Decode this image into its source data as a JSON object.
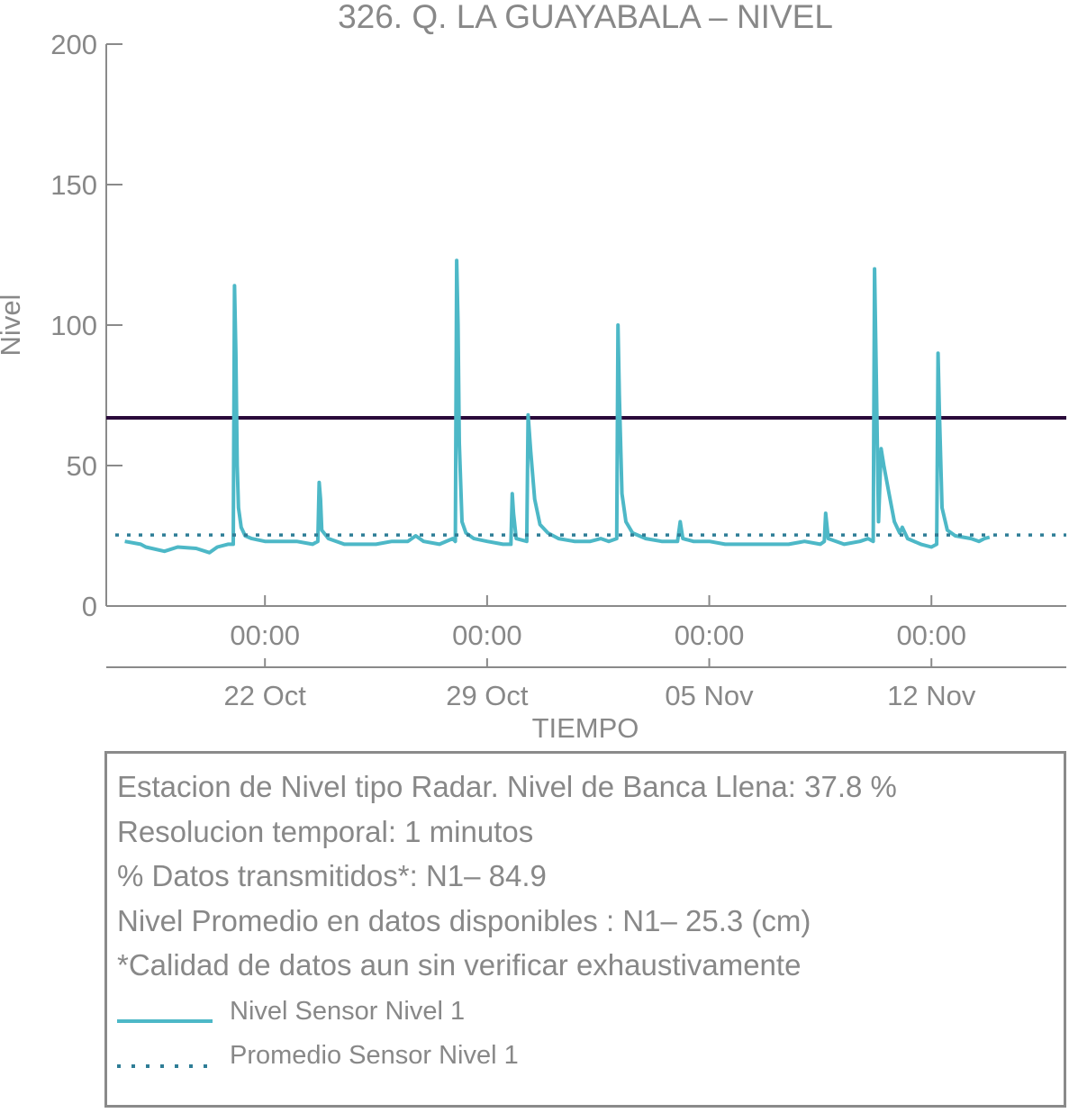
{
  "chart_data": {
    "type": "line",
    "title": "326. Q. LA GUAYABALA – NIVEL",
    "xlabel": "TIEMPO",
    "ylabel": "Nivel",
    "ylim": [
      0,
      200
    ],
    "yticks": [
      "0",
      "50",
      "100",
      "150",
      "200"
    ],
    "xlim": [
      "2023-10-17 00:00",
      "2023-11-16 06:00"
    ],
    "xticks_time": [
      "00:00",
      "00:00",
      "00:00",
      "00:00"
    ],
    "xticks_date": [
      "22 Oct",
      "29 Oct",
      "05 Nov",
      "12 Nov"
    ],
    "xticks_at": [
      "2023-10-22",
      "2023-10-29",
      "2023-11-05",
      "2023-11-12"
    ],
    "threshold": {
      "value": 67,
      "color": "#2a0a3a"
    },
    "grid": false,
    "series": [
      {
        "name": "Nivel Sensor Nivel 1",
        "color": "#4db8c7",
        "style": "solid",
        "points": [
          [
            "2023-10-17 14:00",
            23
          ],
          [
            "2023-10-18 02:00",
            22
          ],
          [
            "2023-10-18 06:00",
            21
          ],
          [
            "2023-10-18 20:00",
            19.5
          ],
          [
            "2023-10-19 06:00",
            21
          ],
          [
            "2023-10-19 20:00",
            20.5
          ],
          [
            "2023-10-20 06:00",
            19
          ],
          [
            "2023-10-20 12:00",
            21
          ],
          [
            "2023-10-20 20:00",
            22
          ],
          [
            "2023-10-21 00:00",
            22
          ],
          [
            "2023-10-21 01:00",
            114
          ],
          [
            "2023-10-21 02:00",
            90
          ],
          [
            "2023-10-21 03:00",
            50
          ],
          [
            "2023-10-21 04:00",
            35
          ],
          [
            "2023-10-21 06:00",
            28
          ],
          [
            "2023-10-21 09:00",
            25
          ],
          [
            "2023-10-21 14:00",
            24
          ],
          [
            "2023-10-22 00:00",
            23
          ],
          [
            "2023-10-22 12:00",
            23
          ],
          [
            "2023-10-23 00:00",
            23
          ],
          [
            "2023-10-23 12:00",
            22
          ],
          [
            "2023-10-23 16:00",
            23
          ],
          [
            "2023-10-23 17:00",
            44
          ],
          [
            "2023-10-23 18:00",
            38
          ],
          [
            "2023-10-23 19:00",
            27
          ],
          [
            "2023-10-24 00:00",
            24
          ],
          [
            "2023-10-24 12:00",
            22
          ],
          [
            "2023-10-25 00:00",
            22
          ],
          [
            "2023-10-25 12:00",
            22
          ],
          [
            "2023-10-26 00:00",
            23
          ],
          [
            "2023-10-26 12:00",
            23
          ],
          [
            "2023-10-26 18:00",
            25
          ],
          [
            "2023-10-27 00:00",
            23
          ],
          [
            "2023-10-27 12:00",
            22
          ],
          [
            "2023-10-27 22:00",
            24
          ],
          [
            "2023-10-28 00:00",
            23
          ],
          [
            "2023-10-28 01:00",
            123
          ],
          [
            "2023-10-28 02:00",
            100
          ],
          [
            "2023-10-28 03:00",
            58
          ],
          [
            "2023-10-28 05:00",
            30
          ],
          [
            "2023-10-28 08:00",
            26
          ],
          [
            "2023-10-28 14:00",
            24
          ],
          [
            "2023-10-29 00:00",
            23
          ],
          [
            "2023-10-29 12:00",
            22
          ],
          [
            "2023-10-29 18:00",
            22
          ],
          [
            "2023-10-29 19:00",
            40
          ],
          [
            "2023-10-29 20:00",
            33
          ],
          [
            "2023-10-29 22:00",
            24
          ],
          [
            "2023-10-30 06:00",
            23
          ],
          [
            "2023-10-30 07:00",
            68
          ],
          [
            "2023-10-30 09:00",
            55
          ],
          [
            "2023-10-30 12:00",
            38
          ],
          [
            "2023-10-30 16:00",
            29
          ],
          [
            "2023-10-30 22:00",
            26
          ],
          [
            "2023-10-31 06:00",
            24
          ],
          [
            "2023-10-31 18:00",
            23
          ],
          [
            "2023-11-01 06:00",
            23
          ],
          [
            "2023-11-01 14:00",
            24
          ],
          [
            "2023-11-01 20:00",
            23
          ],
          [
            "2023-11-02 02:00",
            24
          ],
          [
            "2023-11-02 03:00",
            100
          ],
          [
            "2023-11-02 04:00",
            75
          ],
          [
            "2023-11-02 06:00",
            40
          ],
          [
            "2023-11-02 09:00",
            30
          ],
          [
            "2023-11-02 14:00",
            26
          ],
          [
            "2023-11-03 00:00",
            24
          ],
          [
            "2023-11-03 12:00",
            23
          ],
          [
            "2023-11-04 00:00",
            23
          ],
          [
            "2023-11-04 02:00",
            30
          ],
          [
            "2023-11-04 04:00",
            24
          ],
          [
            "2023-11-04 12:00",
            23
          ],
          [
            "2023-11-05 00:00",
            23
          ],
          [
            "2023-11-05 12:00",
            22
          ],
          [
            "2023-11-06 00:00",
            22
          ],
          [
            "2023-11-06 12:00",
            22
          ],
          [
            "2023-11-07 00:00",
            22
          ],
          [
            "2023-11-07 12:00",
            22
          ],
          [
            "2023-11-08 00:00",
            23
          ],
          [
            "2023-11-08 12:00",
            22
          ],
          [
            "2023-11-08 15:00",
            23
          ],
          [
            "2023-11-08 16:00",
            33
          ],
          [
            "2023-11-08 18:00",
            24
          ],
          [
            "2023-11-09 06:00",
            22
          ],
          [
            "2023-11-09 18:00",
            23
          ],
          [
            "2023-11-10 00:00",
            24
          ],
          [
            "2023-11-10 04:00",
            23
          ],
          [
            "2023-11-10 05:00",
            120
          ],
          [
            "2023-11-10 06:00",
            90
          ],
          [
            "2023-11-10 08:00",
            30
          ],
          [
            "2023-11-10 10:00",
            56
          ],
          [
            "2023-11-10 12:00",
            50
          ],
          [
            "2023-11-10 16:00",
            40
          ],
          [
            "2023-11-10 20:00",
            30
          ],
          [
            "2023-11-11 00:00",
            26
          ],
          [
            "2023-11-11 02:00",
            28
          ],
          [
            "2023-11-11 06:00",
            24
          ],
          [
            "2023-11-11 16:00",
            22
          ],
          [
            "2023-11-12 00:00",
            21
          ],
          [
            "2023-11-12 04:00",
            22
          ],
          [
            "2023-11-12 05:00",
            90
          ],
          [
            "2023-11-12 06:00",
            70
          ],
          [
            "2023-11-12 08:00",
            35
          ],
          [
            "2023-11-12 12:00",
            27
          ],
          [
            "2023-11-12 18:00",
            25
          ],
          [
            "2023-11-13 06:00",
            24
          ],
          [
            "2023-11-13 12:00",
            23
          ],
          [
            "2023-11-13 16:00",
            24
          ],
          [
            "2023-11-13 20:00",
            24.5
          ]
        ]
      },
      {
        "name": "Promedio Sensor Nivel 1",
        "color": "#2e7d96",
        "style": "dotted",
        "value": 25.3
      }
    ]
  },
  "info": {
    "line1": "Estacion de Nivel tipo Radar. Nivel de Banca Llena: 37.8 %",
    "line2": "Resolucion temporal: 1 minutos",
    "line3": "% Datos transmitidos*: N1– 84.9",
    "line4": "Nivel Promedio en datos disponibles : N1– 25.3 (cm)",
    "line5": "*Calidad de datos aun sin verificar exhaustivamente"
  },
  "legend": {
    "items": [
      {
        "label": "Nivel Sensor Nivel 1",
        "color": "#4db8c7",
        "style": "solid"
      },
      {
        "label": "Promedio Sensor Nivel 1",
        "color": "#2e7d96",
        "style": "dotted"
      }
    ]
  },
  "colors": {
    "axis": "#8a8a8a",
    "text": "#888888"
  }
}
